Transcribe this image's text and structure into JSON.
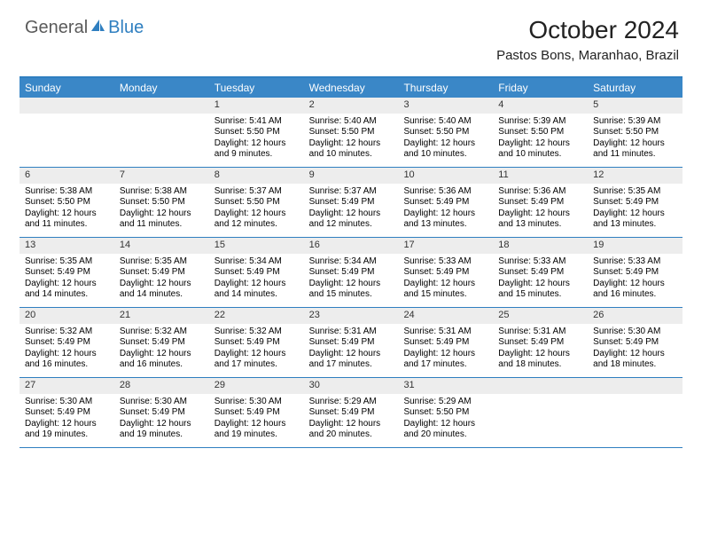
{
  "logo": {
    "part1": "General",
    "part2": "Blue"
  },
  "header": {
    "month": "October 2024",
    "location": "Pastos Bons, Maranhao, Brazil"
  },
  "dayNames": [
    "Sunday",
    "Monday",
    "Tuesday",
    "Wednesday",
    "Thursday",
    "Friday",
    "Saturday"
  ],
  "colors": {
    "accent": "#2f7fc0",
    "headerBar": "#3a87c7",
    "dayNumBg": "#ededed",
    "logoGray": "#5a5a5a"
  },
  "weeks": [
    [
      {
        "n": "",
        "empty": true
      },
      {
        "n": "",
        "empty": true
      },
      {
        "n": "1",
        "sr": "Sunrise: 5:41 AM",
        "ss": "Sunset: 5:50 PM",
        "dl1": "Daylight: 12 hours",
        "dl2": "and 9 minutes."
      },
      {
        "n": "2",
        "sr": "Sunrise: 5:40 AM",
        "ss": "Sunset: 5:50 PM",
        "dl1": "Daylight: 12 hours",
        "dl2": "and 10 minutes."
      },
      {
        "n": "3",
        "sr": "Sunrise: 5:40 AM",
        "ss": "Sunset: 5:50 PM",
        "dl1": "Daylight: 12 hours",
        "dl2": "and 10 minutes."
      },
      {
        "n": "4",
        "sr": "Sunrise: 5:39 AM",
        "ss": "Sunset: 5:50 PM",
        "dl1": "Daylight: 12 hours",
        "dl2": "and 10 minutes."
      },
      {
        "n": "5",
        "sr": "Sunrise: 5:39 AM",
        "ss": "Sunset: 5:50 PM",
        "dl1": "Daylight: 12 hours",
        "dl2": "and 11 minutes."
      }
    ],
    [
      {
        "n": "6",
        "sr": "Sunrise: 5:38 AM",
        "ss": "Sunset: 5:50 PM",
        "dl1": "Daylight: 12 hours",
        "dl2": "and 11 minutes."
      },
      {
        "n": "7",
        "sr": "Sunrise: 5:38 AM",
        "ss": "Sunset: 5:50 PM",
        "dl1": "Daylight: 12 hours",
        "dl2": "and 11 minutes."
      },
      {
        "n": "8",
        "sr": "Sunrise: 5:37 AM",
        "ss": "Sunset: 5:50 PM",
        "dl1": "Daylight: 12 hours",
        "dl2": "and 12 minutes."
      },
      {
        "n": "9",
        "sr": "Sunrise: 5:37 AM",
        "ss": "Sunset: 5:49 PM",
        "dl1": "Daylight: 12 hours",
        "dl2": "and 12 minutes."
      },
      {
        "n": "10",
        "sr": "Sunrise: 5:36 AM",
        "ss": "Sunset: 5:49 PM",
        "dl1": "Daylight: 12 hours",
        "dl2": "and 13 minutes."
      },
      {
        "n": "11",
        "sr": "Sunrise: 5:36 AM",
        "ss": "Sunset: 5:49 PM",
        "dl1": "Daylight: 12 hours",
        "dl2": "and 13 minutes."
      },
      {
        "n": "12",
        "sr": "Sunrise: 5:35 AM",
        "ss": "Sunset: 5:49 PM",
        "dl1": "Daylight: 12 hours",
        "dl2": "and 13 minutes."
      }
    ],
    [
      {
        "n": "13",
        "sr": "Sunrise: 5:35 AM",
        "ss": "Sunset: 5:49 PM",
        "dl1": "Daylight: 12 hours",
        "dl2": "and 14 minutes."
      },
      {
        "n": "14",
        "sr": "Sunrise: 5:35 AM",
        "ss": "Sunset: 5:49 PM",
        "dl1": "Daylight: 12 hours",
        "dl2": "and 14 minutes."
      },
      {
        "n": "15",
        "sr": "Sunrise: 5:34 AM",
        "ss": "Sunset: 5:49 PM",
        "dl1": "Daylight: 12 hours",
        "dl2": "and 14 minutes."
      },
      {
        "n": "16",
        "sr": "Sunrise: 5:34 AM",
        "ss": "Sunset: 5:49 PM",
        "dl1": "Daylight: 12 hours",
        "dl2": "and 15 minutes."
      },
      {
        "n": "17",
        "sr": "Sunrise: 5:33 AM",
        "ss": "Sunset: 5:49 PM",
        "dl1": "Daylight: 12 hours",
        "dl2": "and 15 minutes."
      },
      {
        "n": "18",
        "sr": "Sunrise: 5:33 AM",
        "ss": "Sunset: 5:49 PM",
        "dl1": "Daylight: 12 hours",
        "dl2": "and 15 minutes."
      },
      {
        "n": "19",
        "sr": "Sunrise: 5:33 AM",
        "ss": "Sunset: 5:49 PM",
        "dl1": "Daylight: 12 hours",
        "dl2": "and 16 minutes."
      }
    ],
    [
      {
        "n": "20",
        "sr": "Sunrise: 5:32 AM",
        "ss": "Sunset: 5:49 PM",
        "dl1": "Daylight: 12 hours",
        "dl2": "and 16 minutes."
      },
      {
        "n": "21",
        "sr": "Sunrise: 5:32 AM",
        "ss": "Sunset: 5:49 PM",
        "dl1": "Daylight: 12 hours",
        "dl2": "and 16 minutes."
      },
      {
        "n": "22",
        "sr": "Sunrise: 5:32 AM",
        "ss": "Sunset: 5:49 PM",
        "dl1": "Daylight: 12 hours",
        "dl2": "and 17 minutes."
      },
      {
        "n": "23",
        "sr": "Sunrise: 5:31 AM",
        "ss": "Sunset: 5:49 PM",
        "dl1": "Daylight: 12 hours",
        "dl2": "and 17 minutes."
      },
      {
        "n": "24",
        "sr": "Sunrise: 5:31 AM",
        "ss": "Sunset: 5:49 PM",
        "dl1": "Daylight: 12 hours",
        "dl2": "and 17 minutes."
      },
      {
        "n": "25",
        "sr": "Sunrise: 5:31 AM",
        "ss": "Sunset: 5:49 PM",
        "dl1": "Daylight: 12 hours",
        "dl2": "and 18 minutes."
      },
      {
        "n": "26",
        "sr": "Sunrise: 5:30 AM",
        "ss": "Sunset: 5:49 PM",
        "dl1": "Daylight: 12 hours",
        "dl2": "and 18 minutes."
      }
    ],
    [
      {
        "n": "27",
        "sr": "Sunrise: 5:30 AM",
        "ss": "Sunset: 5:49 PM",
        "dl1": "Daylight: 12 hours",
        "dl2": "and 19 minutes."
      },
      {
        "n": "28",
        "sr": "Sunrise: 5:30 AM",
        "ss": "Sunset: 5:49 PM",
        "dl1": "Daylight: 12 hours",
        "dl2": "and 19 minutes."
      },
      {
        "n": "29",
        "sr": "Sunrise: 5:30 AM",
        "ss": "Sunset: 5:49 PM",
        "dl1": "Daylight: 12 hours",
        "dl2": "and 19 minutes."
      },
      {
        "n": "30",
        "sr": "Sunrise: 5:29 AM",
        "ss": "Sunset: 5:49 PM",
        "dl1": "Daylight: 12 hours",
        "dl2": "and 20 minutes."
      },
      {
        "n": "31",
        "sr": "Sunrise: 5:29 AM",
        "ss": "Sunset: 5:50 PM",
        "dl1": "Daylight: 12 hours",
        "dl2": "and 20 minutes."
      },
      {
        "n": "",
        "empty": true
      },
      {
        "n": "",
        "empty": true
      }
    ]
  ]
}
